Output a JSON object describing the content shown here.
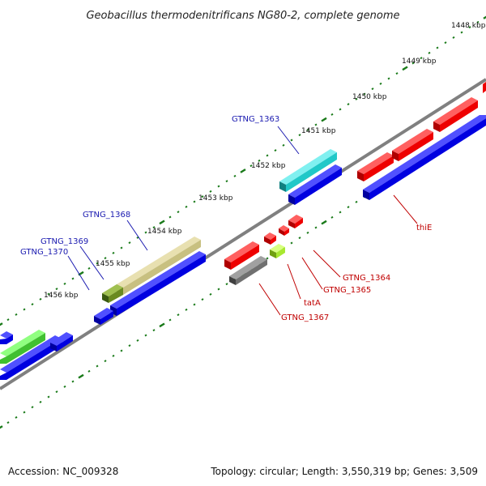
{
  "title": "Geobacillus thermodenitrificans NG80-2, complete genome",
  "accession": "Accession: NC_009328",
  "summary": "Topology: circular; Length: 3,550,319 bp; Genes: 3,509",
  "scale_labels": [
    "1448 kbp",
    "1449 kbp",
    "1450 kbp",
    "1451 kbp",
    "1452 kbp",
    "1453 kbp",
    "1454 kbp",
    "1455 kbp",
    "1456 kbp"
  ],
  "gene_labels_top": [
    "GTNG_1363",
    "GTNG_1368",
    "GTNG_1369",
    "GTNG_1370"
  ],
  "gene_labels_bottom": [
    "thiE",
    "GTNG_1364",
    "GTNG_1365",
    "tatA",
    "GTNG_1367"
  ],
  "colors": {
    "blue": "#0000e0",
    "red": "#ee0000",
    "cyan": "#20c8c8",
    "khaki": "#c8c080",
    "olive": "#6a8a20",
    "green": "#40c030",
    "gray": "#707070",
    "lime": "#a8e830",
    "tick": "#1a7a1a",
    "backbone": "#808080"
  }
}
